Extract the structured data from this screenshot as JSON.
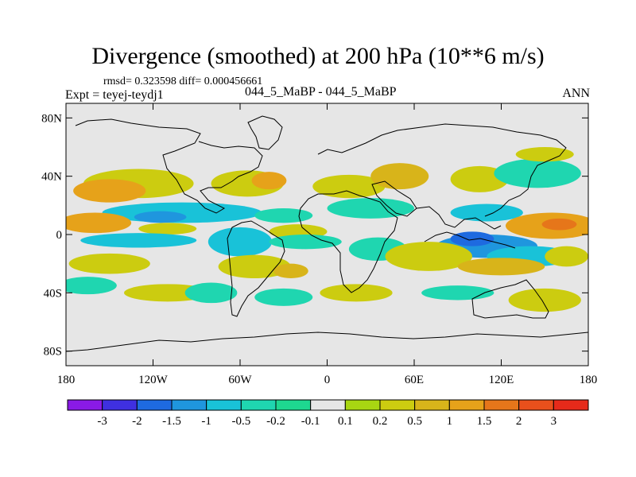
{
  "title": "Divergence (smoothed) at 200 hPa (10**6 m/s)",
  "stats": "rmsd= 0.323598 diff= 0.000456661",
  "experiment": "Expt = teyej-teydj1",
  "case": "044_5_MaBP - 044_5_MaBP",
  "season": "ANN",
  "colors": {
    "background": "#e6e6e6",
    "coast": "#000000",
    "palette": [
      "#8a1ae6",
      "#3f30e0",
      "#1e6ae0",
      "#1f96de",
      "#19c2d8",
      "#1fd6b0",
      "#1ed890",
      "#e6e6e6",
      "#a8d612",
      "#cccc10",
      "#d8b41a",
      "#e6a21a",
      "#e6761a",
      "#e8501c",
      "#e62a1a"
    ]
  },
  "chart_data": {
    "type": "heatmap",
    "title": "Divergence (smoothed) at 200 hPa (10**6 m/s)",
    "xlim": [
      -180,
      180
    ],
    "ylim": [
      -90,
      90
    ],
    "x_ticks": [
      -180,
      -120,
      -60,
      0,
      60,
      120,
      180
    ],
    "x_tick_labels": [
      "180",
      "120W",
      "60W",
      "0",
      "60E",
      "120E",
      "180"
    ],
    "y_ticks": [
      80,
      40,
      0,
      -40,
      -80
    ],
    "y_tick_labels": [
      "80N",
      "40N",
      "0",
      "40S",
      "80S"
    ],
    "colorbar": {
      "levels": [
        -3,
        -2,
        -1.5,
        -1,
        -0.5,
        -0.2,
        -0.1,
        0.1,
        0.2,
        0.5,
        1,
        1.5,
        2,
        3
      ],
      "labels": [
        "-3",
        "-2",
        "-1.5",
        "-1",
        "-0.5",
        "-0.2",
        "-0.1",
        "0.1",
        "0.2",
        "0.5",
        "1",
        "1.5",
        "2",
        "3"
      ]
    },
    "features": [
      {
        "lon": -130,
        "lat": 35,
        "rlon": 38,
        "rlat": 10,
        "value": 0.5
      },
      {
        "lon": -150,
        "lat": 30,
        "rlon": 25,
        "rlat": 8,
        "value": 1.2
      },
      {
        "lon": -55,
        "lat": 35,
        "rlon": 25,
        "rlat": 9,
        "value": 0.5
      },
      {
        "lon": -40,
        "lat": 37,
        "rlon": 12,
        "rlat": 6,
        "value": 1.2
      },
      {
        "lon": 15,
        "lat": 33,
        "rlon": 25,
        "rlat": 8,
        "value": 0.4
      },
      {
        "lon": 50,
        "lat": 40,
        "rlon": 20,
        "rlat": 9,
        "value": 0.6
      },
      {
        "lon": 105,
        "lat": 38,
        "rlon": 20,
        "rlat": 9,
        "value": 0.5
      },
      {
        "lon": 145,
        "lat": 42,
        "rlon": 30,
        "rlat": 10,
        "value": -0.3
      },
      {
        "lon": 150,
        "lat": 55,
        "rlon": 20,
        "rlat": 5,
        "value": 0.3
      },
      {
        "lon": -100,
        "lat": 15,
        "rlon": 55,
        "rlat": 7,
        "value": -0.5
      },
      {
        "lon": -115,
        "lat": 12,
        "rlon": 18,
        "rlat": 4,
        "value": -1.1
      },
      {
        "lon": -30,
        "lat": 13,
        "rlon": 20,
        "rlat": 5,
        "value": -0.3
      },
      {
        "lon": 30,
        "lat": 18,
        "rlon": 30,
        "rlat": 7,
        "value": -0.3
      },
      {
        "lon": 110,
        "lat": 15,
        "rlon": 25,
        "rlat": 6,
        "value": -0.6
      },
      {
        "lon": -160,
        "lat": 8,
        "rlon": 25,
        "rlat": 7,
        "value": 1.2
      },
      {
        "lon": 155,
        "lat": 6,
        "rlon": 32,
        "rlat": 9,
        "value": 1.3
      },
      {
        "lon": 160,
        "lat": 7,
        "rlon": 12,
        "rlat": 4,
        "value": 1.7
      },
      {
        "lon": -110,
        "lat": 4,
        "rlon": 20,
        "rlat": 4,
        "value": 0.4
      },
      {
        "lon": -20,
        "lat": 2,
        "rlon": 20,
        "rlat": 5,
        "value": 0.5
      },
      {
        "lon": -130,
        "lat": -4,
        "rlon": 40,
        "rlat": 5,
        "value": -0.5
      },
      {
        "lon": -60,
        "lat": -5,
        "rlon": 22,
        "rlat": 10,
        "value": -0.6
      },
      {
        "lon": -15,
        "lat": -5,
        "rlon": 25,
        "rlat": 5,
        "value": -0.4
      },
      {
        "lon": 110,
        "lat": -8,
        "rlon": 35,
        "rlat": 8,
        "value": -1.3
      },
      {
        "lon": 100,
        "lat": -3,
        "rlon": 15,
        "rlat": 5,
        "value": -1.6
      },
      {
        "lon": 140,
        "lat": -15,
        "rlon": 30,
        "rlat": 7,
        "value": -0.6
      },
      {
        "lon": 35,
        "lat": -10,
        "rlon": 20,
        "rlat": 8,
        "value": -0.3
      },
      {
        "lon": -150,
        "lat": -20,
        "rlon": 28,
        "rlat": 7,
        "value": 0.5
      },
      {
        "lon": -50,
        "lat": -22,
        "rlon": 25,
        "rlat": 8,
        "value": 0.4
      },
      {
        "lon": -25,
        "lat": -25,
        "rlon": 12,
        "rlat": 5,
        "value": 1.0
      },
      {
        "lon": 70,
        "lat": -15,
        "rlon": 30,
        "rlat": 10,
        "value": 0.5
      },
      {
        "lon": 120,
        "lat": -22,
        "rlon": 30,
        "rlat": 6,
        "value": 0.6
      },
      {
        "lon": 165,
        "lat": -15,
        "rlon": 15,
        "rlat": 7,
        "value": 0.5
      },
      {
        "lon": -165,
        "lat": -35,
        "rlon": 20,
        "rlat": 6,
        "value": -0.4
      },
      {
        "lon": -110,
        "lat": -40,
        "rlon": 30,
        "rlat": 6,
        "value": 0.5
      },
      {
        "lon": -80,
        "lat": -40,
        "rlon": 18,
        "rlat": 7,
        "value": -0.3
      },
      {
        "lon": -30,
        "lat": -43,
        "rlon": 20,
        "rlat": 6,
        "value": -0.3
      },
      {
        "lon": 20,
        "lat": -40,
        "rlon": 25,
        "rlat": 6,
        "value": 0.4
      },
      {
        "lon": 90,
        "lat": -40,
        "rlon": 25,
        "rlat": 5,
        "value": -0.3
      },
      {
        "lon": 150,
        "lat": -45,
        "rlon": 25,
        "rlat": 8,
        "value": 0.5
      }
    ]
  }
}
